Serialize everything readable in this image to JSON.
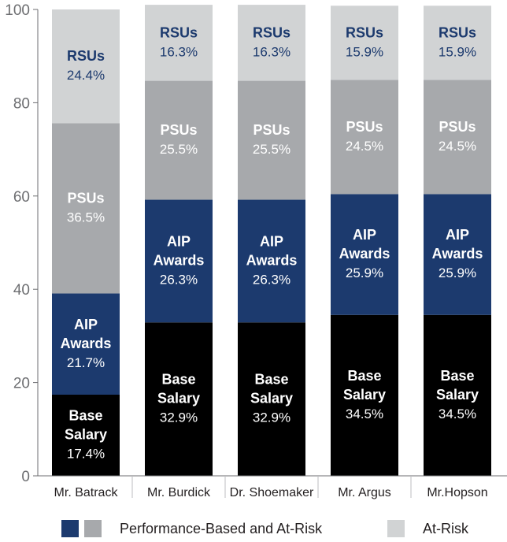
{
  "chart_data": {
    "type": "bar",
    "stacked": true,
    "title": "",
    "xlabel": "",
    "ylabel": "",
    "ylim": [
      0,
      100
    ],
    "yticks": [
      0,
      20,
      40,
      60,
      80,
      100
    ],
    "categories": [
      "Mr. Batrack",
      "Mr. Burdick",
      "Dr. Shoemaker",
      "Mr. Argus",
      "Mr.Hopson"
    ],
    "series": [
      {
        "name": "Base Salary",
        "label_lines": [
          "Base",
          "Salary"
        ],
        "color": "#000000",
        "text_color": "#ffffff",
        "pct_color": "#ffffff",
        "values": [
          17.4,
          32.9,
          32.9,
          34.5,
          34.5
        ],
        "labels": [
          "17.4%",
          "32.9%",
          "32.9%",
          "34.5%",
          "34.5%"
        ]
      },
      {
        "name": "AIP Awards",
        "label_lines": [
          "AIP",
          "Awards"
        ],
        "color": "#1c3a6e",
        "text_color": "#ffffff",
        "pct_color": "#ffffff",
        "values": [
          21.7,
          26.3,
          26.3,
          25.9,
          25.9
        ],
        "labels": [
          "21.7%",
          "26.3%",
          "26.3%",
          "25.9%",
          "25.9%"
        ]
      },
      {
        "name": "PSUs",
        "label_lines": [
          "PSUs"
        ],
        "color": "#a7a9ac",
        "text_color": "#ffffff",
        "pct_color": "#ffffff",
        "values": [
          36.5,
          25.5,
          25.5,
          24.5,
          24.5
        ],
        "labels": [
          "36.5%",
          "25.5%",
          "25.5%",
          "24.5%",
          "24.5%"
        ]
      },
      {
        "name": "RSUs",
        "label_lines": [
          "RSUs"
        ],
        "color": "#d1d3d4",
        "text_color": "#1c3a6e",
        "pct_color": "#1c3a6e",
        "values": [
          24.4,
          16.3,
          16.3,
          15.9,
          15.9
        ],
        "labels": [
          "24.4%",
          "16.3%",
          "16.3%",
          "15.9%",
          "15.9%"
        ]
      }
    ],
    "legend": [
      {
        "label": "Performance-Based and At-Risk",
        "swatches": [
          "#1c3a6e",
          "#a7a9ac"
        ]
      },
      {
        "label": "At-Risk",
        "swatches": [
          "#d1d3d4"
        ]
      }
    ],
    "legend_position": "bottom",
    "colors": {
      "axis": "#6d6e71",
      "separator": "#bcbec0"
    }
  }
}
